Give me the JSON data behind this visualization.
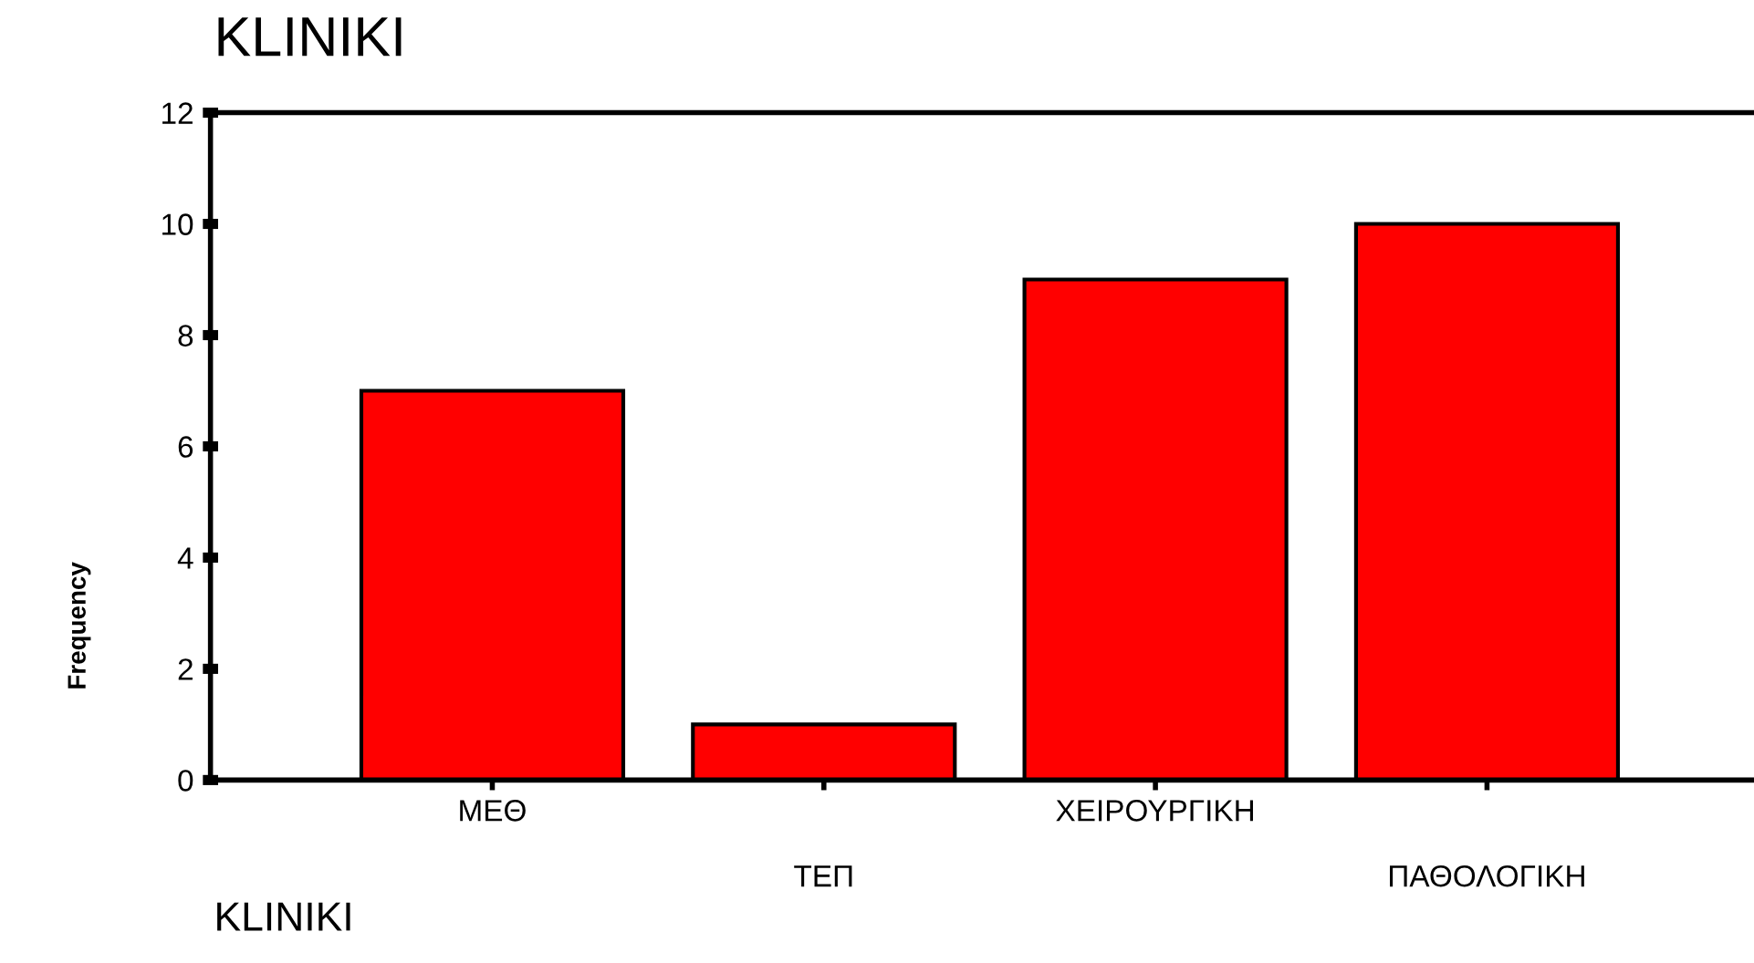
{
  "chart_data": {
    "type": "bar",
    "title": "KLINIKI",
    "xlabel": "KLINIKI",
    "ylabel": "Frequency",
    "categories": [
      "ΜΕΘ",
      "ΤΕΠ",
      "ΧΕΙΡΟΥΡΓΙΚΗ",
      "ΠΑΘΟΛΟΓΙΚΗ"
    ],
    "values": [
      7,
      1,
      9,
      10
    ],
    "color": "#ff0000",
    "ylim": [
      0,
      12
    ],
    "yticks": [
      0,
      2,
      4,
      6,
      8,
      10,
      12
    ],
    "grid": false,
    "legend": false
  }
}
